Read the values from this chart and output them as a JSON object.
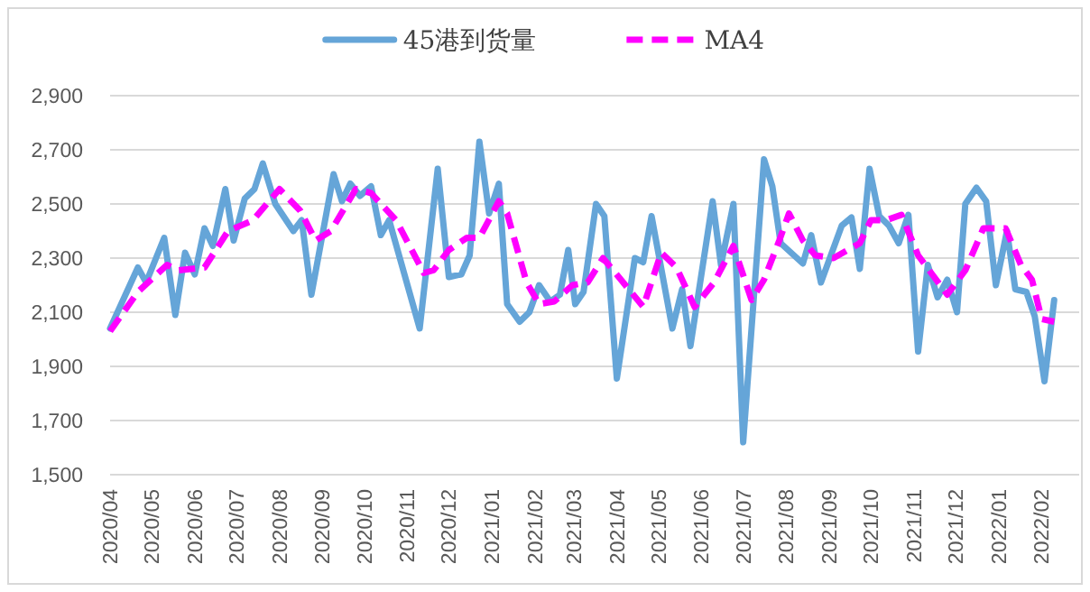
{
  "chart_data": {
    "type": "line",
    "xlim": [
      "2020-04-01",
      "2022-02-28"
    ],
    "xticks": [
      {
        "value": "2020-04-01",
        "label": "2020/04"
      },
      {
        "value": "2020-05-01",
        "label": "2020/05"
      },
      {
        "value": "2020-06-01",
        "label": "2020/06"
      },
      {
        "value": "2020-07-01",
        "label": "2020/07"
      },
      {
        "value": "2020-08-01",
        "label": "2020/08"
      },
      {
        "value": "2020-09-01",
        "label": "2020/09"
      },
      {
        "value": "2020-10-01",
        "label": "2020/10"
      },
      {
        "value": "2020-11-01",
        "label": "2020/11"
      },
      {
        "value": "2020-12-01",
        "label": "2020/12"
      },
      {
        "value": "2021-01-01",
        "label": "2021/01"
      },
      {
        "value": "2021-02-01",
        "label": "2021/02"
      },
      {
        "value": "2021-03-01",
        "label": "2021/03"
      },
      {
        "value": "2021-04-01",
        "label": "2021/04"
      },
      {
        "value": "2021-05-01",
        "label": "2021/05"
      },
      {
        "value": "2021-06-01",
        "label": "2021/06"
      },
      {
        "value": "2021-07-01",
        "label": "2021/07"
      },
      {
        "value": "2021-08-01",
        "label": "2021/08"
      },
      {
        "value": "2021-09-01",
        "label": "2021/09"
      },
      {
        "value": "2021-10-01",
        "label": "2021/10"
      },
      {
        "value": "2021-11-01",
        "label": "2021/11"
      },
      {
        "value": "2021-12-01",
        "label": "2021/12"
      },
      {
        "value": "2022-01-01",
        "label": "2022/01"
      },
      {
        "value": "2022-02-01",
        "label": "2022/02"
      }
    ],
    "ylim": [
      1500,
      2900
    ],
    "yticks": [
      {
        "value": 1500,
        "label": "1,500"
      },
      {
        "value": 1700,
        "label": "1,700"
      },
      {
        "value": 1900,
        "label": "1,900"
      },
      {
        "value": 2100,
        "label": "2,100"
      },
      {
        "value": 2300,
        "label": "2,300"
      },
      {
        "value": 2500,
        "label": "2,500"
      },
      {
        "value": 2700,
        "label": "2,700"
      },
      {
        "value": 2900,
        "label": "2,900"
      }
    ],
    "grid": "y",
    "legend": "top",
    "marker": "none",
    "series": [
      {
        "name": "45港到货量",
        "color": "#65a5d8",
        "line_style": "solid",
        "x": [
          "2020-04-01",
          "2020-04-21",
          "2020-04-27",
          "2020-05-10",
          "2020-05-18",
          "2020-05-25",
          "2020-06-01",
          "2020-06-08",
          "2020-06-14",
          "2020-06-23",
          "2020-06-29",
          "2020-07-07",
          "2020-07-14",
          "2020-07-20",
          "2020-07-29",
          "2020-08-11",
          "2020-08-17",
          "2020-08-24",
          "2020-09-09",
          "2020-09-15",
          "2020-09-21",
          "2020-09-28",
          "2020-10-06",
          "2020-10-13",
          "2020-10-19",
          "2020-11-10",
          "2020-11-23",
          "2020-12-01",
          "2020-12-10",
          "2020-12-16",
          "2020-12-23",
          "2020-12-30",
          "2021-01-06",
          "2021-01-12",
          "2021-01-21",
          "2021-01-28",
          "2021-02-04",
          "2021-02-12",
          "2021-02-19",
          "2021-02-25",
          "2021-03-02",
          "2021-03-08",
          "2021-03-17",
          "2021-03-23",
          "2021-04-01",
          "2021-04-14",
          "2021-04-20",
          "2021-04-26",
          "2021-05-11",
          "2021-05-18",
          "2021-05-24",
          "2021-06-09",
          "2021-06-15",
          "2021-06-24",
          "2021-07-01",
          "2021-07-16",
          "2021-07-22",
          "2021-07-28",
          "2021-08-13",
          "2021-08-19",
          "2021-08-26",
          "2021-09-10",
          "2021-09-17",
          "2021-09-23",
          "2021-09-30",
          "2021-10-07",
          "2021-10-14",
          "2021-10-21",
          "2021-10-28",
          "2021-11-04",
          "2021-11-11",
          "2021-11-18",
          "2021-11-25",
          "2021-12-02",
          "2021-12-08",
          "2021-12-16",
          "2021-12-23",
          "2021-12-30",
          "2022-01-07",
          "2022-01-13",
          "2022-01-21",
          "2022-01-27",
          "2022-02-03",
          "2022-02-10"
        ],
        "values": [
          2040,
          2265,
          2210,
          2375,
          2090,
          2320,
          2240,
          2410,
          2345,
          2555,
          2365,
          2520,
          2555,
          2650,
          2500,
          2400,
          2440,
          2165,
          2610,
          2510,
          2575,
          2530,
          2565,
          2385,
          2440,
          2040,
          2630,
          2230,
          2240,
          2310,
          2730,
          2465,
          2575,
          2130,
          2065,
          2100,
          2200,
          2140,
          2165,
          2330,
          2130,
          2175,
          2500,
          2455,
          1855,
          2300,
          2285,
          2455,
          2040,
          2185,
          1975,
          2510,
          2275,
          2500,
          1620,
          2665,
          2565,
          2355,
          2280,
          2385,
          2210,
          2420,
          2450,
          2260,
          2630,
          2455,
          2420,
          2355,
          2460,
          1955,
          2275,
          2155,
          2220,
          2100,
          2500,
          2560,
          2510,
          2200,
          2400,
          2185,
          2175,
          2085,
          1845,
          2145
        ]
      },
      {
        "name": "MA4",
        "color": "#ff00ff",
        "line_style": "dashed",
        "x": [
          "2020-04-01",
          "2020-04-21",
          "2020-05-12",
          "2020-05-20",
          "2020-06-08",
          "2020-06-25",
          "2020-07-13",
          "2020-08-01",
          "2020-08-16",
          "2020-08-27",
          "2020-09-07",
          "2020-09-25",
          "2020-10-06",
          "2020-10-24",
          "2020-11-13",
          "2020-11-20",
          "2020-12-01",
          "2020-12-14",
          "2020-12-23",
          "2021-01-06",
          "2021-01-12",
          "2021-01-26",
          "2021-02-04",
          "2021-02-15",
          "2021-02-28",
          "2021-03-11",
          "2021-03-22",
          "2021-04-04",
          "2021-04-20",
          "2021-05-03",
          "2021-05-14",
          "2021-05-27",
          "2021-06-10",
          "2021-06-24",
          "2021-07-07",
          "2021-07-16",
          "2021-07-27",
          "2021-08-03",
          "2021-08-13",
          "2021-08-22",
          "2021-09-04",
          "2021-09-23",
          "2021-10-01",
          "2021-10-12",
          "2021-10-23",
          "2021-11-04",
          "2021-11-25",
          "2021-12-08",
          "2021-12-21",
          "2022-01-06",
          "2022-01-17",
          "2022-01-25",
          "2022-02-01",
          "2022-02-10"
        ],
        "values": [
          2030,
          2175,
          2275,
          2255,
          2265,
          2400,
          2440,
          2555,
          2475,
          2365,
          2400,
          2555,
          2540,
          2440,
          2245,
          2255,
          2330,
          2375,
          2375,
          2510,
          2465,
          2210,
          2130,
          2140,
          2200,
          2210,
          2300,
          2220,
          2120,
          2320,
          2265,
          2120,
          2210,
          2345,
          2145,
          2220,
          2365,
          2465,
          2365,
          2310,
          2300,
          2355,
          2440,
          2440,
          2460,
          2310,
          2165,
          2255,
          2410,
          2410,
          2275,
          2220,
          2075,
          2065
        ]
      }
    ]
  }
}
